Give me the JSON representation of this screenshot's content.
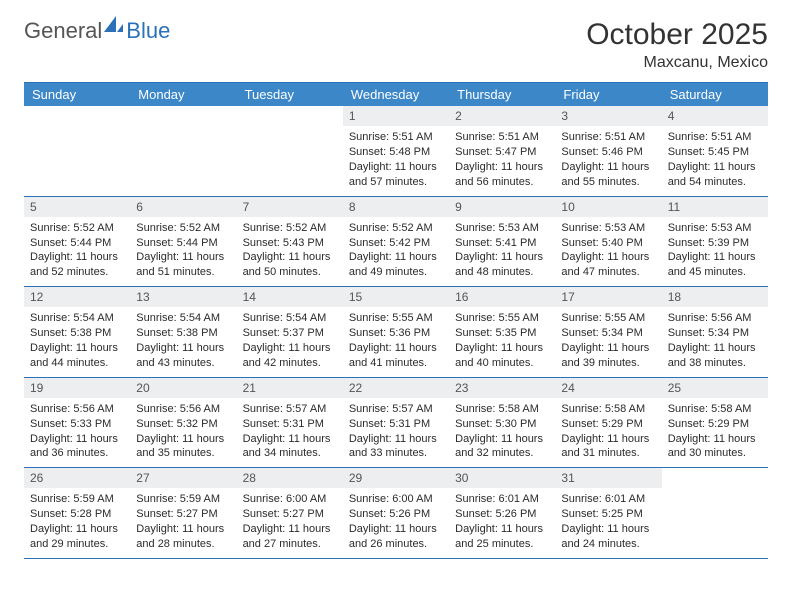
{
  "brand": {
    "word1": "General",
    "word2": "Blue"
  },
  "title": "October 2025",
  "location": "Maxcanu, Mexico",
  "colors": {
    "header_bg": "#3b87c8",
    "header_text": "#ffffff",
    "rule": "#2a71b8",
    "daynum_bg": "#eceeef",
    "daynum_text": "#555555",
    "body_text": "#2b2b2b",
    "title_text": "#333333",
    "logo_accent": "#2a71b8"
  },
  "typography": {
    "title_fontsize": 30,
    "location_fontsize": 16,
    "th_fontsize": 13,
    "cell_fontsize": 11
  },
  "day_names": [
    "Sunday",
    "Monday",
    "Tuesday",
    "Wednesday",
    "Thursday",
    "Friday",
    "Saturday"
  ],
  "weeks": [
    [
      {
        "blank": true
      },
      {
        "blank": true
      },
      {
        "blank": true
      },
      {
        "day": "1",
        "sunrise": "Sunrise: 5:51 AM",
        "sunset": "Sunset: 5:48 PM",
        "daylight": "Daylight: 11 hours and 57 minutes."
      },
      {
        "day": "2",
        "sunrise": "Sunrise: 5:51 AM",
        "sunset": "Sunset: 5:47 PM",
        "daylight": "Daylight: 11 hours and 56 minutes."
      },
      {
        "day": "3",
        "sunrise": "Sunrise: 5:51 AM",
        "sunset": "Sunset: 5:46 PM",
        "daylight": "Daylight: 11 hours and 55 minutes."
      },
      {
        "day": "4",
        "sunrise": "Sunrise: 5:51 AM",
        "sunset": "Sunset: 5:45 PM",
        "daylight": "Daylight: 11 hours and 54 minutes."
      }
    ],
    [
      {
        "day": "5",
        "sunrise": "Sunrise: 5:52 AM",
        "sunset": "Sunset: 5:44 PM",
        "daylight": "Daylight: 11 hours and 52 minutes."
      },
      {
        "day": "6",
        "sunrise": "Sunrise: 5:52 AM",
        "sunset": "Sunset: 5:44 PM",
        "daylight": "Daylight: 11 hours and 51 minutes."
      },
      {
        "day": "7",
        "sunrise": "Sunrise: 5:52 AM",
        "sunset": "Sunset: 5:43 PM",
        "daylight": "Daylight: 11 hours and 50 minutes."
      },
      {
        "day": "8",
        "sunrise": "Sunrise: 5:52 AM",
        "sunset": "Sunset: 5:42 PM",
        "daylight": "Daylight: 11 hours and 49 minutes."
      },
      {
        "day": "9",
        "sunrise": "Sunrise: 5:53 AM",
        "sunset": "Sunset: 5:41 PM",
        "daylight": "Daylight: 11 hours and 48 minutes."
      },
      {
        "day": "10",
        "sunrise": "Sunrise: 5:53 AM",
        "sunset": "Sunset: 5:40 PM",
        "daylight": "Daylight: 11 hours and 47 minutes."
      },
      {
        "day": "11",
        "sunrise": "Sunrise: 5:53 AM",
        "sunset": "Sunset: 5:39 PM",
        "daylight": "Daylight: 11 hours and 45 minutes."
      }
    ],
    [
      {
        "day": "12",
        "sunrise": "Sunrise: 5:54 AM",
        "sunset": "Sunset: 5:38 PM",
        "daylight": "Daylight: 11 hours and 44 minutes."
      },
      {
        "day": "13",
        "sunrise": "Sunrise: 5:54 AM",
        "sunset": "Sunset: 5:38 PM",
        "daylight": "Daylight: 11 hours and 43 minutes."
      },
      {
        "day": "14",
        "sunrise": "Sunrise: 5:54 AM",
        "sunset": "Sunset: 5:37 PM",
        "daylight": "Daylight: 11 hours and 42 minutes."
      },
      {
        "day": "15",
        "sunrise": "Sunrise: 5:55 AM",
        "sunset": "Sunset: 5:36 PM",
        "daylight": "Daylight: 11 hours and 41 minutes."
      },
      {
        "day": "16",
        "sunrise": "Sunrise: 5:55 AM",
        "sunset": "Sunset: 5:35 PM",
        "daylight": "Daylight: 11 hours and 40 minutes."
      },
      {
        "day": "17",
        "sunrise": "Sunrise: 5:55 AM",
        "sunset": "Sunset: 5:34 PM",
        "daylight": "Daylight: 11 hours and 39 minutes."
      },
      {
        "day": "18",
        "sunrise": "Sunrise: 5:56 AM",
        "sunset": "Sunset: 5:34 PM",
        "daylight": "Daylight: 11 hours and 38 minutes."
      }
    ],
    [
      {
        "day": "19",
        "sunrise": "Sunrise: 5:56 AM",
        "sunset": "Sunset: 5:33 PM",
        "daylight": "Daylight: 11 hours and 36 minutes."
      },
      {
        "day": "20",
        "sunrise": "Sunrise: 5:56 AM",
        "sunset": "Sunset: 5:32 PM",
        "daylight": "Daylight: 11 hours and 35 minutes."
      },
      {
        "day": "21",
        "sunrise": "Sunrise: 5:57 AM",
        "sunset": "Sunset: 5:31 PM",
        "daylight": "Daylight: 11 hours and 34 minutes."
      },
      {
        "day": "22",
        "sunrise": "Sunrise: 5:57 AM",
        "sunset": "Sunset: 5:31 PM",
        "daylight": "Daylight: 11 hours and 33 minutes."
      },
      {
        "day": "23",
        "sunrise": "Sunrise: 5:58 AM",
        "sunset": "Sunset: 5:30 PM",
        "daylight": "Daylight: 11 hours and 32 minutes."
      },
      {
        "day": "24",
        "sunrise": "Sunrise: 5:58 AM",
        "sunset": "Sunset: 5:29 PM",
        "daylight": "Daylight: 11 hours and 31 minutes."
      },
      {
        "day": "25",
        "sunrise": "Sunrise: 5:58 AM",
        "sunset": "Sunset: 5:29 PM",
        "daylight": "Daylight: 11 hours and 30 minutes."
      }
    ],
    [
      {
        "day": "26",
        "sunrise": "Sunrise: 5:59 AM",
        "sunset": "Sunset: 5:28 PM",
        "daylight": "Daylight: 11 hours and 29 minutes."
      },
      {
        "day": "27",
        "sunrise": "Sunrise: 5:59 AM",
        "sunset": "Sunset: 5:27 PM",
        "daylight": "Daylight: 11 hours and 28 minutes."
      },
      {
        "day": "28",
        "sunrise": "Sunrise: 6:00 AM",
        "sunset": "Sunset: 5:27 PM",
        "daylight": "Daylight: 11 hours and 27 minutes."
      },
      {
        "day": "29",
        "sunrise": "Sunrise: 6:00 AM",
        "sunset": "Sunset: 5:26 PM",
        "daylight": "Daylight: 11 hours and 26 minutes."
      },
      {
        "day": "30",
        "sunrise": "Sunrise: 6:01 AM",
        "sunset": "Sunset: 5:26 PM",
        "daylight": "Daylight: 11 hours and 25 minutes."
      },
      {
        "day": "31",
        "sunrise": "Sunrise: 6:01 AM",
        "sunset": "Sunset: 5:25 PM",
        "daylight": "Daylight: 11 hours and 24 minutes."
      },
      {
        "blank": true
      }
    ]
  ]
}
